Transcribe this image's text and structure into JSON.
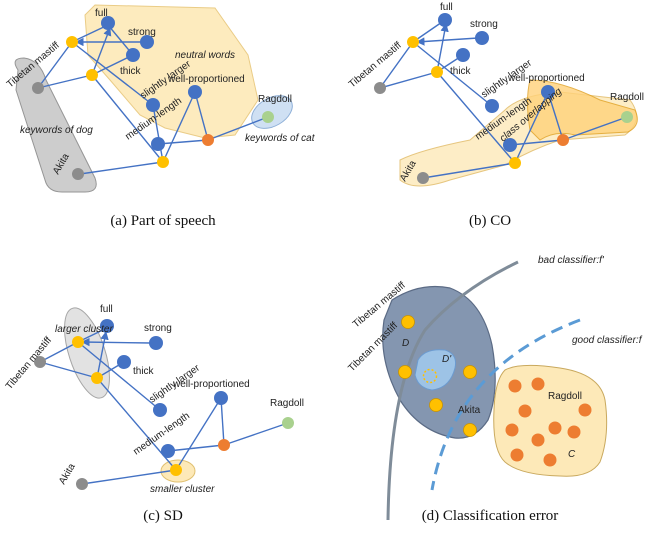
{
  "colors": {
    "blue_node": "#4472c4",
    "yellow_node": "#ffc000",
    "gray_node": "#8c8c8c",
    "green_node": "#a9d18e",
    "orange_node": "#ed7d31",
    "edge": "#4472c4"
  },
  "panels": {
    "a": {
      "caption": "(a)  Part of speech",
      "words": {
        "full": "full",
        "strong": "strong",
        "thick": "thick",
        "slightly_larger": "slightly larger",
        "well_proportioned": "well-proportioned",
        "medium_length": "medium-length",
        "tibetan_mastiff": "Tibetan mastiff",
        "akita": "Akita",
        "ragdoll": "Ragdoll"
      },
      "region_labels": {
        "neutral": "neutral words",
        "dog": "keywords of dog",
        "cat": "keywords of cat"
      }
    },
    "b": {
      "caption": "(b)  CO",
      "words": {
        "full": "full",
        "strong": "strong",
        "thick": "thick",
        "slightly_larger": "slightly larger",
        "well_proportioned": "well-proportioned",
        "medium_length": "medium-length",
        "tibetan_mastiff": "Tibetan mastiff",
        "akita": "Akita",
        "ragdoll": "Ragdoll"
      },
      "region_labels": {
        "overlap": "class overlapping"
      }
    },
    "c": {
      "caption": "(c)  SD",
      "words": {
        "full": "full",
        "strong": "strong",
        "thick": "thick",
        "slightly_larger": "slightly larger",
        "well_proportioned": "well-proportioned",
        "medium_length": "medium-length",
        "tibetan_mastiff": "Tibetan mastiff",
        "akita": "Akita",
        "ragdoll": "Ragdoll"
      },
      "region_labels": {
        "larger": "larger cluster",
        "smaller": "smaller cluster"
      }
    },
    "d": {
      "caption": "(d)  Classification error",
      "labels": {
        "bad": "bad classifier:f'",
        "good": "good classifier:f",
        "tm1": "Tibetan mastiff",
        "tm2": "Tibetan mastiff",
        "akita": "Akita",
        "ragdoll": "Ragdoll",
        "D": "D",
        "Dprime": "D'",
        "C": "C"
      }
    }
  }
}
